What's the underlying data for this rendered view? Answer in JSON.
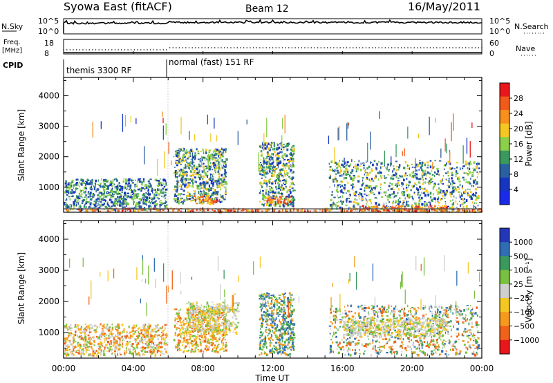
{
  "header": {
    "site": "Syowa East (fitACF)",
    "beam": "Beam 12",
    "date": "16/May/2011"
  },
  "noise_panel": {
    "left_label": "N.Sky",
    "left_ticks": [
      "10^5",
      "10^0"
    ],
    "right_label": "N.Search",
    "right_ticks": [
      "10^5",
      "10^0"
    ]
  },
  "freq_panel": {
    "left_label_1": "Freq.",
    "left_label_2": "[MHz]",
    "left_ticks": [
      "18",
      "8"
    ],
    "right_label": "Nave",
    "right_ticks": [
      "60",
      "0"
    ]
  },
  "cpid": {
    "label": "CPID",
    "modes": [
      {
        "name": "themis 3300 RF",
        "start_hour": 0
      },
      {
        "name": "normal (fast) 151 RF",
        "start_hour": 6
      }
    ]
  },
  "axes": {
    "x_ticks": [
      "00:00",
      "04:00",
      "08:00",
      "12:00",
      "16:00",
      "20:00",
      "00:00"
    ],
    "xlabel": "Time UT",
    "ylabel": "Slant Range [km]",
    "y_ticks": [
      "4000",
      "3000",
      "2000",
      "1000"
    ]
  },
  "power_colorbar": {
    "label": "Power [dB]",
    "ticks": [
      "28",
      "24",
      "20",
      "16",
      "12",
      "8",
      "4"
    ],
    "colors": [
      "#e8171b",
      "#f25a1a",
      "#f8901e",
      "#f5c723",
      "#8ccf4a",
      "#3a9a5e",
      "#2a5fa0",
      "#1636c0",
      "#1a2ae8"
    ]
  },
  "velocity_colorbar": {
    "label": "Velocity [m s⁻¹]",
    "ticks": [
      "1000",
      "500",
      "100",
      "25",
      "−25",
      "−100",
      "−500",
      "−1000"
    ],
    "colors": [
      "#2437b8",
      "#2f6db4",
      "#3a9a5e",
      "#7ac142",
      "#cfcfcf",
      "#f5c723",
      "#f59a1e",
      "#f0621a",
      "#e8171b"
    ]
  },
  "chart_data": [
    {
      "type": "heatmap",
      "title": "Power",
      "xlabel": "Time UT",
      "ylabel": "Slant Range [km]",
      "xlim": [
        0,
        24
      ],
      "ylim": [
        180,
        4600
      ],
      "colorbar_label": "Power [dB]",
      "colorbar_ticks": [
        28,
        24,
        20,
        16,
        12,
        8,
        4
      ],
      "regions": [
        {
          "t": [
            0.0,
            5.9
          ],
          "r": [
            300,
            1300
          ],
          "level": "low"
        },
        {
          "t": [
            0.0,
            24.0
          ],
          "r": [
            230,
            330
          ],
          "level": "high"
        },
        {
          "t": [
            6.3,
            9.3
          ],
          "r": [
            500,
            2300
          ],
          "level": "medium"
        },
        {
          "t": [
            7.4,
            8.8
          ],
          "r": [
            480,
            760
          ],
          "level": "high"
        },
        {
          "t": [
            11.2,
            13.2
          ],
          "r": [
            400,
            2500
          ],
          "level": "medium"
        },
        {
          "t": [
            11.6,
            13.0
          ],
          "r": [
            480,
            720
          ],
          "level": "high"
        },
        {
          "t": [
            15.2,
            23.8
          ],
          "r": [
            300,
            1900
          ],
          "level": "medium"
        },
        {
          "t": [
            17.0,
            22.0
          ],
          "r": [
            240,
            420
          ],
          "level": "high"
        }
      ]
    },
    {
      "type": "heatmap",
      "title": "Velocity",
      "xlabel": "Time UT",
      "ylabel": "Slant Range [km]",
      "xlim": [
        0,
        24
      ],
      "ylim": [
        180,
        4600
      ],
      "colorbar_label": "Velocity [m s⁻¹]",
      "colorbar_ticks": [
        1000,
        500,
        100,
        25,
        -25,
        -100,
        -500,
        -1000
      ],
      "regions": [
        {
          "t": [
            0.0,
            5.9
          ],
          "r": [
            300,
            1300
          ],
          "level": "away_slow"
        },
        {
          "t": [
            6.3,
            9.3
          ],
          "r": [
            400,
            1800
          ],
          "level": "away_medium"
        },
        {
          "t": [
            7.0,
            10.0
          ],
          "r": [
            1000,
            2000
          ],
          "level": "near_zero"
        },
        {
          "t": [
            11.2,
            13.2
          ],
          "r": [
            300,
            2300
          ],
          "level": "toward"
        },
        {
          "t": [
            15.2,
            23.8
          ],
          "r": [
            300,
            1900
          ],
          "level": "mixed"
        },
        {
          "t": [
            16.0,
            22.0
          ],
          "r": [
            900,
            1500
          ],
          "level": "near_zero"
        }
      ]
    }
  ]
}
